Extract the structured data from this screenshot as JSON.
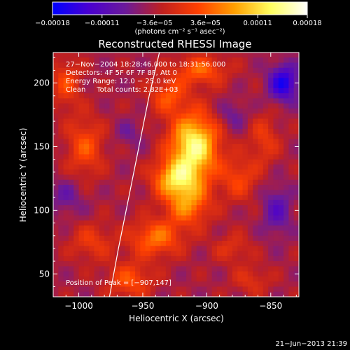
{
  "chart_data": {
    "type": "heatmap",
    "title": "Reconstructed RHESSI Image",
    "xlabel": "Heliocentric X (arcsec)",
    "ylabel": "Heliocentric Y (arcsec)",
    "xlim": [
      -1020,
      -828
    ],
    "ylim": [
      32,
      224
    ],
    "x_ticks": [
      -1000,
      -950,
      -900,
      -850
    ],
    "x_tick_labels": [
      "−1000",
      "−950",
      "−900",
      "−850"
    ],
    "y_ticks": [
      50,
      100,
      150,
      200
    ],
    "y_tick_labels": [
      "50",
      "100",
      "150",
      "200"
    ],
    "colorbar": {
      "range": [
        -0.00018,
        0.00018
      ],
      "ticks": [
        -0.00018,
        -0.00011,
        -3.6e-05,
        3.6e-05,
        0.00011,
        0.00018
      ],
      "tick_labels": [
        "−0.00018",
        "−0.00011",
        "−3.6e−05",
        "3.6e−05",
        "0.00011",
        "0.00018"
      ],
      "unit_label": "(photons cm⁻² s⁻¹ asec⁻²)",
      "stops": [
        "#0000ff",
        "#4a00d0",
        "#6b1a9a",
        "#c02020",
        "#ff4000",
        "#ffa000",
        "#ffff60",
        "#ffffff"
      ]
    },
    "annotations": [
      "27−Nov−2004 18:28:46.000 to 18:31:56.000",
      "Detectors: 4F 5F 6F 7F 8F, Att 0",
      "Energy Range: 12.0 − 25.0 keV",
      "Clean     Total counts: 2.82E+03"
    ],
    "peak_label": "Position of Peak = [−907,147]",
    "peak": {
      "x": -907,
      "y": 147
    },
    "limb_curve": {
      "x": [
        -937,
        -945,
        -953,
        -961,
        -969,
        -976
      ],
      "y": [
        224,
        190,
        150,
        110,
        70,
        32
      ]
    },
    "sources": [
      {
        "x": -910,
        "y": 150,
        "value": 0.00018,
        "sx": 13,
        "sy": 18
      },
      {
        "x": -925,
        "y": 125,
        "value": 0.00012,
        "sx": 12,
        "sy": 10
      },
      {
        "x": -915,
        "y": 105,
        "value": 0.0001,
        "sx": 12,
        "sy": 12
      },
      {
        "x": -940,
        "y": 78,
        "value": 9e-05,
        "sx": 14,
        "sy": 10
      },
      {
        "x": -930,
        "y": 190,
        "value": 7e-05,
        "sx": 10,
        "sy": 10
      },
      {
        "x": -905,
        "y": 210,
        "value": 8e-05,
        "sx": 14,
        "sy": 8
      },
      {
        "x": -995,
        "y": 150,
        "value": 7e-05,
        "sx": 10,
        "sy": 16
      },
      {
        "x": -1010,
        "y": 200,
        "value": 6e-05,
        "sx": 8,
        "sy": 14
      },
      {
        "x": -990,
        "y": 75,
        "value": 5e-05,
        "sx": 12,
        "sy": 10
      },
      {
        "x": -875,
        "y": 125,
        "value": 6e-05,
        "sx": 10,
        "sy": 12
      },
      {
        "x": -880,
        "y": 70,
        "value": 4e-05,
        "sx": 10,
        "sy": 8
      },
      {
        "x": -855,
        "y": 155,
        "value": 5e-05,
        "sx": 8,
        "sy": 14
      },
      {
        "x": -865,
        "y": 45,
        "value": 4e-05,
        "sx": 10,
        "sy": 8
      },
      {
        "x": -960,
        "y": 45,
        "value": 7e-05,
        "sx": 12,
        "sy": 10
      },
      {
        "x": -840,
        "y": 200,
        "value": -0.00012,
        "sx": 8,
        "sy": 10
      },
      {
        "x": -845,
        "y": 100,
        "value": -6e-05,
        "sx": 8,
        "sy": 14
      },
      {
        "x": -1010,
        "y": 110,
        "value": -4e-05,
        "sx": 10,
        "sy": 10
      },
      {
        "x": -960,
        "y": 160,
        "value": -3e-05,
        "sx": 8,
        "sy": 8
      },
      {
        "x": -880,
        "y": 175,
        "value": -4e-05,
        "sx": 8,
        "sy": 8
      }
    ]
  },
  "footer": {
    "timestamp": "21−Jun−2013 21:39"
  }
}
